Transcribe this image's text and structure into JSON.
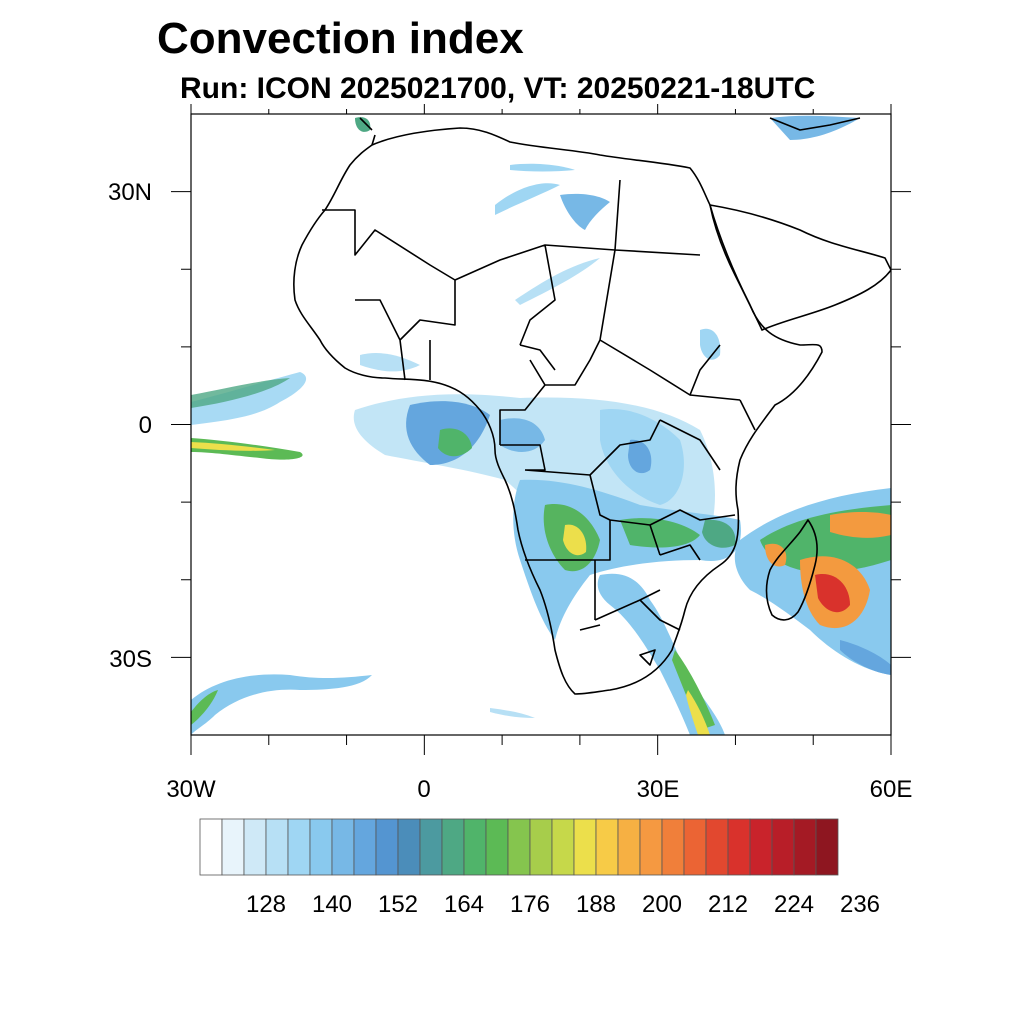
{
  "title": "Convection index",
  "subtitle": "Run: ICON 2025021700,  VT: 20250221-18UTC",
  "axes": {
    "lat_labels": [
      "30N",
      "0",
      "30S"
    ],
    "lon_labels": [
      "30W",
      "0",
      "30E",
      "60E"
    ]
  },
  "colorbar": {
    "labels": [
      "128",
      "140",
      "152",
      "164",
      "176",
      "188",
      "200",
      "212",
      "224",
      "236"
    ],
    "colors": [
      "#ffffff",
      "#e8f4fb",
      "#cfe9f7",
      "#b7e0f5",
      "#9fd6f3",
      "#89c9ee",
      "#77b8e6",
      "#64a6de",
      "#5495d1",
      "#4b8dba",
      "#4c9aa0",
      "#4ea884",
      "#50b46a",
      "#5cba55",
      "#85c54e",
      "#a7cd4b",
      "#c6d84a",
      "#ecdf4b",
      "#f7cb47",
      "#f6b043",
      "#f59941",
      "#f07f3a",
      "#eb6434",
      "#e2482f",
      "#d9322c",
      "#c9232b",
      "#b81e28",
      "#a41a24",
      "#8e1620"
    ]
  },
  "map": {
    "extent": {
      "lon": [
        -30,
        60
      ],
      "lat": [
        -40,
        40
      ]
    },
    "color_levels": {
      "light": "#bfe3f5",
      "medium": "#6fb4e2",
      "green": "#56b45f",
      "yellow": "#e9d94b",
      "orange": "#f39a3f",
      "red": "#d9322c"
    }
  }
}
